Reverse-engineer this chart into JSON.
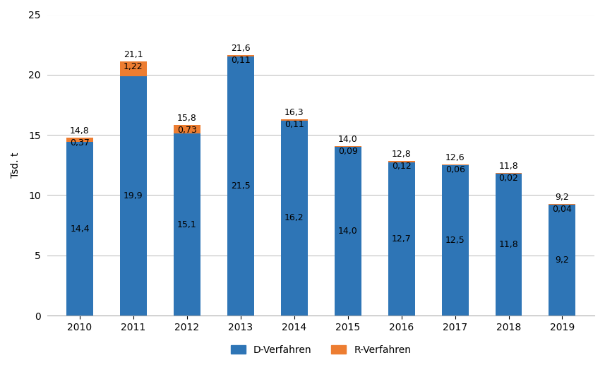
{
  "years": [
    2010,
    2011,
    2012,
    2013,
    2014,
    2015,
    2016,
    2017,
    2018,
    2019
  ],
  "d_verfahren": [
    14.4,
    19.9,
    15.1,
    21.5,
    16.2,
    14.0,
    12.7,
    12.5,
    11.8,
    9.2
  ],
  "r_verfahren": [
    0.37,
    1.22,
    0.73,
    0.11,
    0.11,
    0.09,
    0.12,
    0.06,
    0.02,
    0.04
  ],
  "total_labels": [
    "14,8",
    "21,1",
    "15,8",
    "21,6",
    "16,3",
    "14,0",
    "12,8",
    "12,6",
    "11,8",
    "9,2"
  ],
  "d_labels": [
    "14,4",
    "19,9",
    "15,1",
    "21,5",
    "16,2",
    "14,0",
    "12,7",
    "12,5",
    "11,8",
    "9,2"
  ],
  "r_labels": [
    "0,37",
    "1,22",
    "0,73",
    "0,11",
    "0,11",
    "0,09",
    "0,12",
    "0,06",
    "0,02",
    "0,04"
  ],
  "bar_color_d": "#2E75B6",
  "bar_color_r": "#ED7D31",
  "ylabel": "Tsd. t",
  "ylim": [
    0,
    25
  ],
  "yticks": [
    0,
    5,
    10,
    15,
    20,
    25
  ],
  "legend_d": "D-Verfahren",
  "legend_r": "R-Verfahren",
  "bg_color": "#FFFFFF",
  "grid_color": "#C0C0C0"
}
